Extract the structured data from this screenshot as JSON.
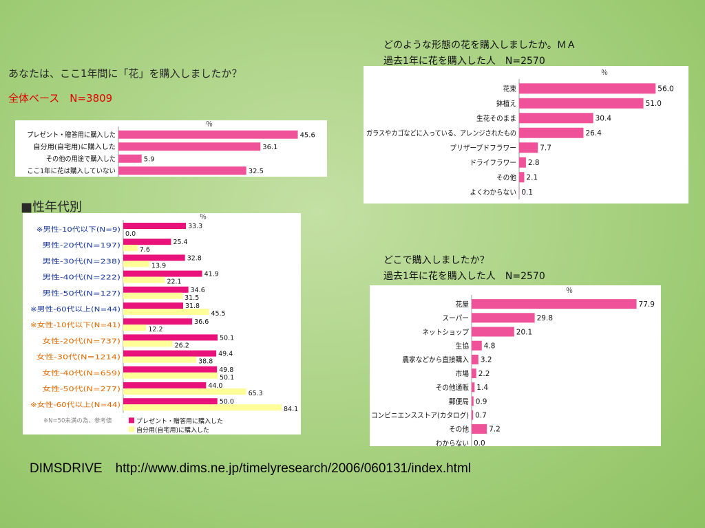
{
  "texts": {
    "q_main": "あなたは、ここ1年間に「花」を購入しましたか？",
    "q_main_base": "全体ベース　N=3809",
    "section_title": "■性年代別",
    "q_form_line1": "どのような形態の花を購入しましたか。ＭＡ",
    "q_form_line2": "過去1年に花を購入した人　N=2570",
    "q_place_line1": "どこで購入しましたか？",
    "q_place_line2": "過去1年に花を購入した人　N=2570",
    "footer": "DIMSDRIVE　http://www.dims.ne.jp/timelyresearch/2006/060131/index.html"
  },
  "colors": {
    "pink": "#f0529a",
    "magenta": "#e8127a",
    "yellow": "#ffff99",
    "gray": "#888888",
    "blue_label": "#1a3a9a",
    "orange_label": "#e06a00"
  },
  "chart_data": [
    {
      "type": "bar",
      "orientation": "horizontal",
      "unit": "％",
      "categories": [
        "プレゼント・贈答用に購入した",
        "自分用(自宅用)に購入した",
        "その他の用途で購入した",
        "ここ1年に花は購入していない"
      ],
      "values": [
        45.6,
        36.1,
        5.9,
        32.5
      ],
      "xlim": [
        0,
        50
      ]
    },
    {
      "type": "bar",
      "orientation": "horizontal",
      "unit": "％",
      "categories": [
        "花束",
        "鉢植え",
        "生花そのまま",
        "ガラスやカゴなどに入っている、アレンジされたもの",
        "プリザーブドフラワー",
        "ドライフラワー",
        "その他",
        "よくわからない"
      ],
      "values": [
        56.0,
        51.0,
        30.4,
        26.4,
        7.7,
        2.8,
        2.1,
        0.1
      ],
      "xlim": [
        0,
        60
      ]
    },
    {
      "type": "bar",
      "orientation": "horizontal",
      "unit": "％",
      "categories": [
        "花屋",
        "スーパー",
        "ネットショップ",
        "生協",
        "農家などから直接購入",
        "市場",
        "その他通販",
        "郵便局",
        "コンビニエンスストア(カタログ)",
        "その他",
        "わからない"
      ],
      "values": [
        77.9,
        29.8,
        20.1,
        4.8,
        3.2,
        2.2,
        1.4,
        0.9,
        0.7,
        7.2,
        0.0
      ],
      "xlim": [
        0,
        80
      ]
    },
    {
      "type": "bar",
      "orientation": "horizontal",
      "unit": "％",
      "categories": [
        "※男性-10代以下(N=9)",
        "男性-20代(N=197)",
        "男性-30代(N=238)",
        "男性-40代(N=222)",
        "男性-50代(N=127)",
        "※男性-60代以上(N=44)",
        "※女性-10代以下(N=41)",
        "女性-20代(N=737)",
        "女性-30代(N=1214)",
        "女性-40代(N=659)",
        "女性-50代(N=277)",
        "※女性-60代以上(N=44)"
      ],
      "category_groups": [
        "male",
        "male",
        "male",
        "male",
        "male",
        "male",
        "female",
        "female",
        "female",
        "female",
        "female",
        "female"
      ],
      "series": [
        {
          "name": "プレゼント・贈答用に購入した",
          "values": [
            33.3,
            25.4,
            32.8,
            41.9,
            34.6,
            31.8,
            36.6,
            50.1,
            49.4,
            49.8,
            44.0,
            50.0
          ]
        },
        {
          "name": "自分用(自宅用)に購入した",
          "values": [
            0.0,
            7.6,
            13.9,
            22.1,
            31.5,
            45.5,
            12.2,
            26.2,
            38.8,
            50.1,
            65.3,
            84.1
          ]
        }
      ],
      "note": "※N=50未満の為、参考値",
      "xlim": [
        0,
        100
      ]
    }
  ]
}
